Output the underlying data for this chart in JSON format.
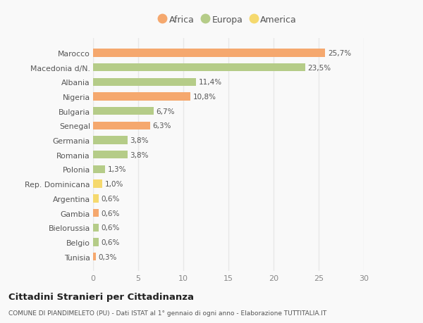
{
  "categories": [
    "Tunisia",
    "Belgio",
    "Bielorussia",
    "Gambia",
    "Argentina",
    "Rep. Dominicana",
    "Polonia",
    "Romania",
    "Germania",
    "Senegal",
    "Bulgaria",
    "Nigeria",
    "Albania",
    "Macedonia d/N.",
    "Marocco"
  ],
  "values": [
    0.3,
    0.6,
    0.6,
    0.6,
    0.6,
    1.0,
    1.3,
    3.8,
    3.8,
    6.3,
    6.7,
    10.8,
    11.4,
    23.5,
    25.7
  ],
  "colors": [
    "#f5a86e",
    "#b5cc88",
    "#b5cc88",
    "#f5a86e",
    "#f5d96e",
    "#f5d96e",
    "#b5cc88",
    "#b5cc88",
    "#b5cc88",
    "#f5a86e",
    "#b5cc88",
    "#f5a86e",
    "#b5cc88",
    "#b5cc88",
    "#f5a86e"
  ],
  "labels": [
    "0,3%",
    "0,6%",
    "0,6%",
    "0,6%",
    "0,6%",
    "1,0%",
    "1,3%",
    "3,8%",
    "3,8%",
    "6,3%",
    "6,7%",
    "10,8%",
    "11,4%",
    "23,5%",
    "25,7%"
  ],
  "legend_labels": [
    "Africa",
    "Europa",
    "America"
  ],
  "legend_colors": [
    "#f5a86e",
    "#b5cc88",
    "#f5d96e"
  ],
  "title": "Cittadini Stranieri per Cittadinanza",
  "subtitle": "COMUNE DI PIANDIMELETO (PU) - Dati ISTAT al 1° gennaio di ogni anno - Elaborazione TUTTITALIA.IT",
  "xlim": [
    0,
    30
  ],
  "xticks": [
    0,
    5,
    10,
    15,
    20,
    25,
    30
  ],
  "background_color": "#f9f9f9",
  "grid_color": "#e8e8e8",
  "bar_height": 0.55
}
